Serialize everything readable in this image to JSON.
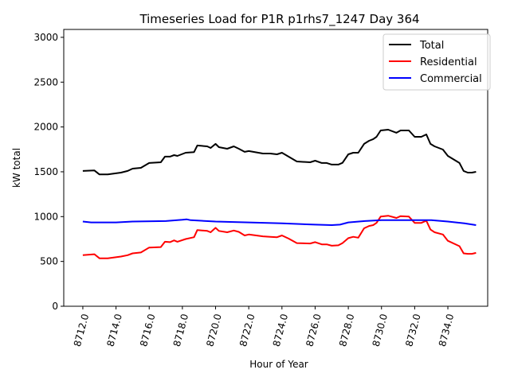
{
  "chart_data": {
    "type": "line",
    "title": "Timeseries Load for P1R p1rhs7_1247  Day 364",
    "xlabel": "Hour of Year",
    "ylabel": "kW total",
    "xlim": [
      8710.85,
      8736.4
    ],
    "ylim": [
      0,
      3088
    ],
    "xticks": [
      8712,
      8714,
      8716,
      8718,
      8720,
      8722,
      8724,
      8726,
      8728,
      8730,
      8732,
      8734
    ],
    "xtick_labels": [
      "8712.0",
      "8714.0",
      "8716.0",
      "8718.0",
      "8720.0",
      "8722.0",
      "8724.0",
      "8726.0",
      "8728.0",
      "8730.0",
      "8732.0",
      "8734.0"
    ],
    "yticks": [
      0,
      500,
      1000,
      1500,
      2000,
      2500,
      3000
    ],
    "ytick_labels": [
      "0",
      "500",
      "1000",
      "1500",
      "2000",
      "2500",
      "3000"
    ],
    "grid": false,
    "legend_position": "top-right",
    "series": [
      {
        "name": "Total",
        "color": "#000000",
        "x": [
          8712,
          8712.7,
          8713,
          8713.5,
          8714.3,
          8714.7,
          8715,
          8715.5,
          8716,
          8716.7,
          8716.95,
          8717.25,
          8717.5,
          8717.7,
          8718.2,
          8718.7,
          8718.9,
          8719.5,
          8719.7,
          8720,
          8720.2,
          8720.7,
          8721.1,
          8721.4,
          8721.75,
          8722,
          8722.85,
          8723.3,
          8723.7,
          8724,
          8724.4,
          8724.9,
          8725.7,
          8726,
          8726.4,
          8726.7,
          8727,
          8727.4,
          8727.65,
          8728,
          8728.3,
          8728.6,
          8728.95,
          8729.25,
          8729.5,
          8729.7,
          8729.95,
          8730.4,
          8730.9,
          8731.15,
          8731.65,
          8732,
          8732.4,
          8732.7,
          8732.95,
          8733.2,
          8733.7,
          8734,
          8734.7,
          8734.95,
          8735.2,
          8735.45,
          8735.7
        ],
        "y": [
          1509,
          1515,
          1470,
          1470,
          1491,
          1509,
          1535,
          1544,
          1598,
          1606,
          1669,
          1669,
          1686,
          1677,
          1713,
          1720,
          1793,
          1784,
          1766,
          1811,
          1775,
          1757,
          1784,
          1757,
          1722,
          1731,
          1704,
          1704,
          1695,
          1713,
          1669,
          1615,
          1606,
          1624,
          1598,
          1598,
          1580,
          1580,
          1600,
          1695,
          1713,
          1713,
          1811,
          1846,
          1864,
          1890,
          1961,
          1970,
          1935,
          1961,
          1961,
          1890,
          1890,
          1917,
          1811,
          1784,
          1748,
          1677,
          1598,
          1509,
          1491,
          1491,
          1500
        ]
      },
      {
        "name": "Residential",
        "color": "#ff0000",
        "x": [
          8712,
          8712.7,
          8713,
          8713.5,
          8714.3,
          8714.7,
          8715,
          8715.5,
          8716,
          8716.7,
          8716.95,
          8717.25,
          8717.5,
          8717.7,
          8718.2,
          8718.7,
          8718.9,
          8719.5,
          8719.7,
          8720,
          8720.2,
          8720.7,
          8721.1,
          8721.4,
          8721.75,
          8722,
          8722.85,
          8723.3,
          8723.7,
          8724,
          8724.4,
          8724.9,
          8725.7,
          8726,
          8726.4,
          8726.7,
          8727,
          8727.4,
          8727.65,
          8728,
          8728.3,
          8728.6,
          8728.95,
          8729.25,
          8729.5,
          8729.7,
          8729.95,
          8730.4,
          8730.9,
          8731.15,
          8731.65,
          8732,
          8732.4,
          8732.7,
          8732.95,
          8733.2,
          8733.7,
          8734,
          8734.7,
          8734.95,
          8735.2,
          8735.45,
          8735.7
        ],
        "y": [
          570,
          580,
          535,
          535,
          555,
          570,
          590,
          600,
          655,
          660,
          720,
          715,
          735,
          720,
          750,
          770,
          850,
          840,
          825,
          875,
          840,
          825,
          845,
          830,
          790,
          800,
          780,
          775,
          770,
          790,
          755,
          705,
          700,
          715,
          690,
          690,
          675,
          680,
          705,
          760,
          775,
          765,
          870,
          895,
          905,
          930,
          1000,
          1010,
          985,
          1005,
          1000,
          930,
          930,
          955,
          855,
          825,
          800,
          730,
          670,
          590,
          585,
          585,
          595
        ]
      },
      {
        "name": "Commercial",
        "color": "#0000ff",
        "x": [
          8712,
          8712.5,
          8714,
          8715,
          8717,
          8718,
          8718.25,
          8718.5,
          8720,
          8722,
          8724,
          8726,
          8727,
          8727.5,
          8728,
          8729,
          8730,
          8731,
          8732,
          8733,
          8734,
          8735,
          8735.7
        ],
        "y": [
          945,
          935,
          935,
          945,
          950,
          965,
          970,
          960,
          945,
          935,
          925,
          910,
          905,
          910,
          935,
          950,
          960,
          960,
          960,
          960,
          945,
          925,
          905
        ]
      }
    ]
  }
}
